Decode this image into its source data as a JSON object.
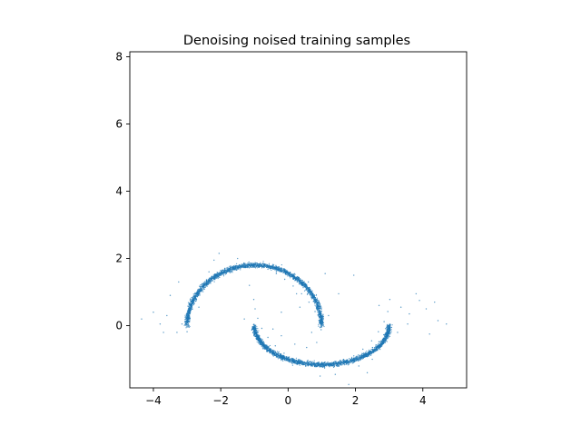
{
  "chart_data": {
    "type": "scatter",
    "title": "Denoising noised training samples",
    "xlabel": "",
    "ylabel": "",
    "xlim": [
      -4.7,
      5.3
    ],
    "ylim": [
      -1.85,
      8.15
    ],
    "xticks": [
      -4,
      -2,
      0,
      2,
      4
    ],
    "yticks": [
      0,
      2,
      4,
      6,
      8
    ],
    "xtick_labels": [
      "−4",
      "−2",
      "0",
      "2",
      "4"
    ],
    "ytick_labels": [
      "0",
      "2",
      "4",
      "6",
      "8"
    ],
    "grid": false,
    "legend": "none",
    "marker_color": "#1f77b4",
    "series": [
      {
        "values_desc": "",
        "points": [
          [
            -3.0,
            -0.18
          ],
          [
            -2.97,
            0.12
          ],
          [
            -2.9,
            0.42
          ],
          [
            -2.8,
            0.72
          ],
          [
            -2.66,
            0.98
          ],
          [
            -2.5,
            1.2
          ],
          [
            -2.3,
            1.42
          ],
          [
            -2.1,
            1.58
          ],
          [
            -1.88,
            1.7
          ],
          [
            -1.62,
            1.78
          ],
          [
            -1.35,
            1.82
          ],
          [
            -1.1,
            1.8
          ],
          [
            -0.85,
            1.76
          ],
          [
            -0.6,
            1.68
          ],
          [
            -0.35,
            1.55
          ],
          [
            -0.1,
            1.38
          ],
          [
            0.15,
            1.18
          ],
          [
            0.4,
            0.95
          ],
          [
            0.62,
            0.7
          ],
          [
            0.8,
            0.42
          ],
          [
            0.92,
            0.15
          ],
          [
            0.98,
            -0.12
          ],
          [
            -1.02,
            0.78
          ],
          [
            -0.98,
            0.5
          ],
          [
            -0.9,
            0.22
          ],
          [
            -0.78,
            -0.08
          ],
          [
            -0.6,
            -0.35
          ],
          [
            -0.38,
            -0.6
          ],
          [
            -0.12,
            -0.82
          ],
          [
            0.15,
            -0.98
          ],
          [
            0.45,
            -1.1
          ],
          [
            0.75,
            -1.16
          ],
          [
            1.05,
            -1.18
          ],
          [
            1.35,
            -1.15
          ],
          [
            1.65,
            -1.05
          ],
          [
            1.95,
            -0.9
          ],
          [
            2.22,
            -0.7
          ],
          [
            2.48,
            -0.45
          ],
          [
            2.68,
            -0.18
          ],
          [
            2.85,
            0.12
          ],
          [
            2.96,
            0.42
          ],
          [
            3.02,
            0.78
          ],
          [
            -3.3,
            -0.2
          ],
          [
            -3.6,
            0.3
          ],
          [
            -4.0,
            0.4
          ],
          [
            -3.7,
            -0.2
          ],
          [
            -3.25,
            1.3
          ],
          [
            -3.5,
            0.9
          ],
          [
            -4.35,
            0.2
          ],
          [
            -3.15,
            0.05
          ],
          [
            -2.2,
            1.95
          ],
          [
            -2.05,
            2.15
          ],
          [
            -2.35,
            1.6
          ],
          [
            -1.5,
            2.0
          ],
          [
            0.6,
            1.3
          ],
          [
            0.25,
            0.95
          ],
          [
            1.1,
            1.55
          ],
          [
            1.95,
            1.5
          ],
          [
            1.5,
            0.95
          ],
          [
            0.35,
            0.55
          ],
          [
            3.55,
            0.05
          ],
          [
            3.8,
            0.95
          ],
          [
            4.1,
            0.5
          ],
          [
            4.35,
            0.7
          ],
          [
            4.7,
            0.05
          ],
          [
            4.2,
            -0.25
          ],
          [
            3.35,
            0.55
          ],
          [
            3.6,
            0.35
          ],
          [
            4.45,
            0.15
          ],
          [
            3.9,
            0.75
          ],
          [
            1.8,
            -1.75
          ],
          [
            2.35,
            -1.4
          ],
          [
            0.95,
            -1.5
          ],
          [
            2.1,
            -1.2
          ],
          [
            0.55,
            -0.65
          ],
          [
            0.85,
            -0.5
          ],
          [
            -0.2,
            -0.3
          ],
          [
            0.2,
            -0.55
          ],
          [
            -1.3,
            0.2
          ],
          [
            -0.45,
            -0.1
          ],
          [
            0.7,
            -0.2
          ],
          [
            1.2,
            0.3
          ],
          [
            -0.2,
            0.4
          ],
          [
            -2.65,
            0.55
          ],
          [
            -1.15,
            1.2
          ],
          [
            2.7,
            0.6
          ],
          [
            1.4,
            -1.45
          ],
          [
            2.5,
            -1.0
          ],
          [
            -3.8,
            0.05
          ],
          [
            3.25,
            -0.2
          ]
        ]
      }
    ]
  }
}
